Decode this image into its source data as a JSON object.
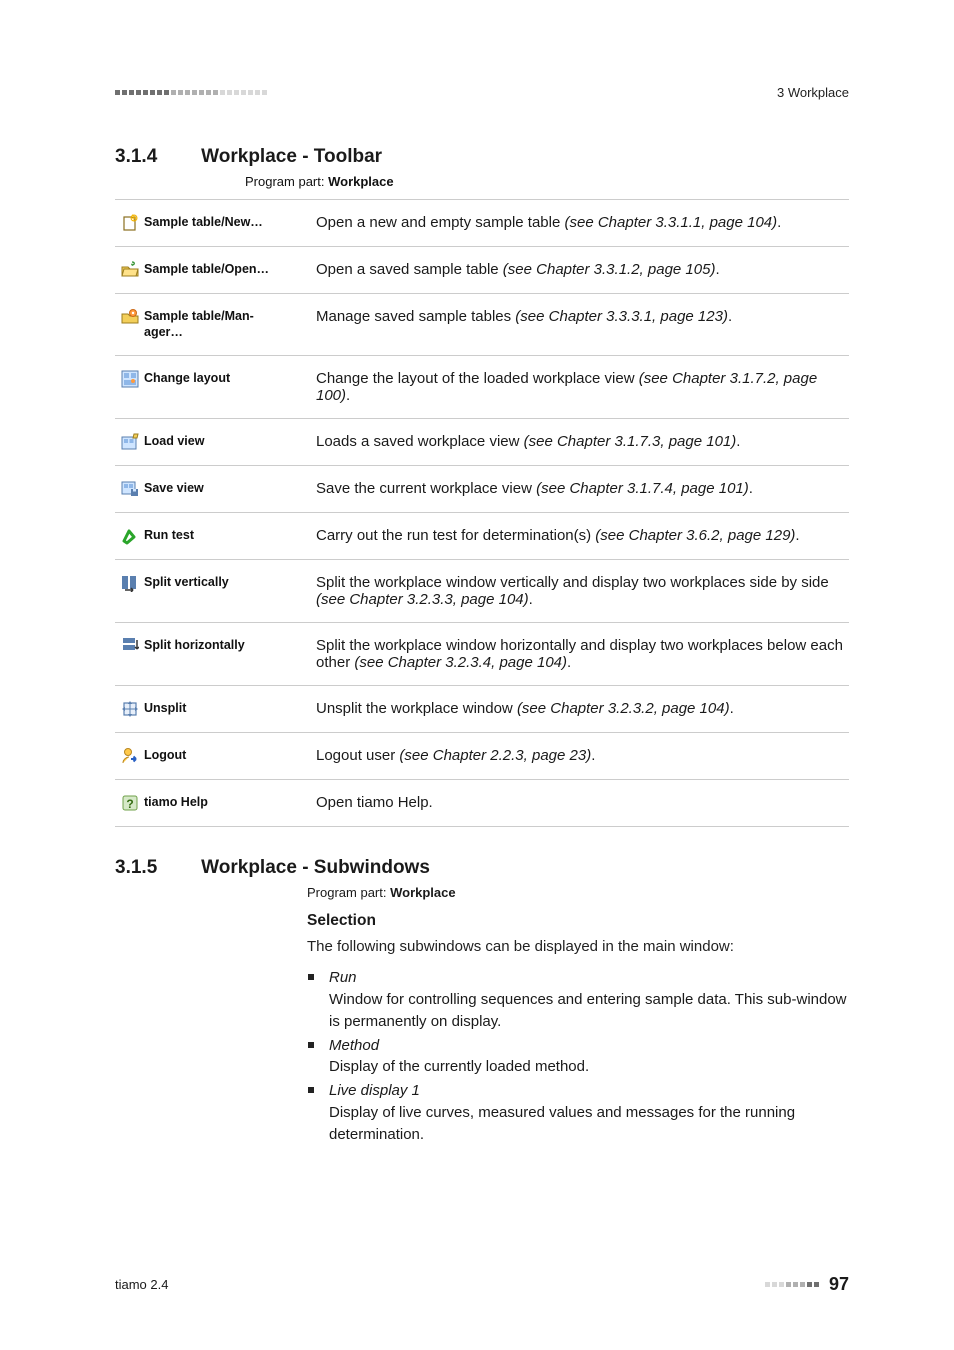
{
  "header": {
    "right": "3 Workplace"
  },
  "section1": {
    "number": "3.1.4",
    "title": "Workplace - Toolbar",
    "program_prefix": "Program part: ",
    "program_bold": "Workplace"
  },
  "rows": [
    {
      "label": "Sample table/New…",
      "desc_plain": "Open a new and empty sample table ",
      "desc_italic": "(see Chapter 3.3.1.1, page 104)",
      "desc_tail": ".",
      "icon": "new-icon"
    },
    {
      "label": "Sample table/Open…",
      "desc_plain": "Open a saved sample table ",
      "desc_italic": "(see Chapter 3.3.1.2, page 105)",
      "desc_tail": ".",
      "icon": "open-icon"
    },
    {
      "label": "Sample table/Man-\nager…",
      "desc_plain": "Manage saved sample tables ",
      "desc_italic": "(see Chapter 3.3.3.1, page 123)",
      "desc_tail": ".",
      "icon": "manager-icon"
    },
    {
      "label": "Change layout",
      "desc_plain": "Change the layout of the loaded workplace view ",
      "desc_italic": "(see Chapter 3.1.7.2, page 100)",
      "desc_tail": ".",
      "icon": "layout-icon"
    },
    {
      "label": "Load view",
      "desc_plain": "Loads a saved workplace view ",
      "desc_italic": "(see Chapter 3.1.7.3, page 101)",
      "desc_tail": ".",
      "icon": "load-view-icon"
    },
    {
      "label": "Save view",
      "desc_plain": "Save the current workplace view ",
      "desc_italic": "(see Chapter 3.1.7.4, page 101)",
      "desc_tail": ".",
      "icon": "save-view-icon"
    },
    {
      "label": "Run test",
      "desc_plain": "Carry out the run test for determination(s) ",
      "desc_italic": "(see Chapter 3.6.2, page 129)",
      "desc_tail": ".",
      "icon": "run-test-icon"
    },
    {
      "label": "Split vertically",
      "desc_plain": "Split the workplace window vertically and display two workplaces side by side ",
      "desc_italic": "(see Chapter 3.2.3.3, page 104)",
      "desc_tail": ".",
      "icon": "split-vert-icon"
    },
    {
      "label": "Split horizontally",
      "desc_plain": "Split the workplace window horizontally and display two workplaces below each other ",
      "desc_italic": "(see Chapter 3.2.3.4, page 104)",
      "desc_tail": ".",
      "icon": "split-horiz-icon"
    },
    {
      "label": "Unsplit",
      "desc_plain": "Unsplit the workplace window ",
      "desc_italic": "(see Chapter 3.2.3.2, page 104)",
      "desc_tail": ".",
      "icon": "unsplit-icon"
    },
    {
      "label": "Logout",
      "desc_plain": "Logout user ",
      "desc_italic": "(see Chapter 2.2.3, page 23)",
      "desc_tail": ".",
      "icon": "logout-icon"
    },
    {
      "label": "tiamo Help",
      "desc_plain": "Open tiamo Help.",
      "desc_italic": "",
      "desc_tail": "",
      "icon": "help-icon"
    }
  ],
  "section2": {
    "number": "3.1.5",
    "title": "Workplace - Subwindows",
    "program_prefix": "Program part: ",
    "program_bold": "Workplace",
    "selection_heading": "Selection",
    "selection_intro": "The following subwindows can be displayed in the main window:",
    "items": [
      {
        "title": "Run",
        "body": "Window for controlling sequences and entering sample data. This sub-window is permanently on display."
      },
      {
        "title": "Method",
        "body": "Display of the currently loaded method."
      },
      {
        "title": "Live display 1",
        "body": "Display of live curves, measured values and messages for the running determination."
      }
    ]
  },
  "footer": {
    "left": "tiamo 2.4",
    "page": "97"
  }
}
